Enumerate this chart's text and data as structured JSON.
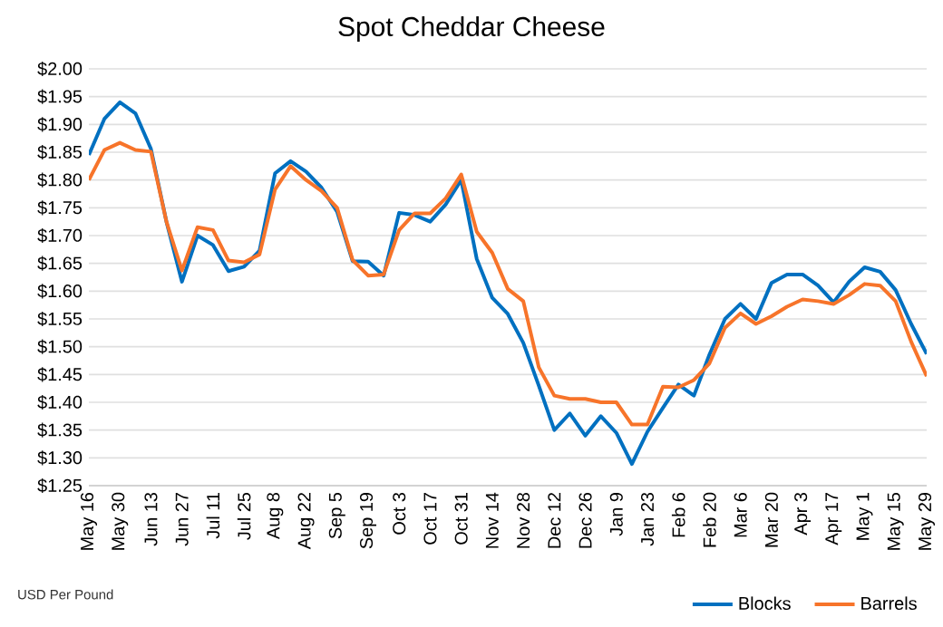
{
  "chart_data": {
    "type": "line",
    "title": "Spot Cheddar Cheese",
    "categories": [
      "May 16",
      null,
      "May 30",
      null,
      "Jun 13",
      null,
      "Jun 27",
      null,
      "Jul 11",
      null,
      "Jul 25",
      null,
      "Aug 8",
      null,
      "Aug 22",
      null,
      "Sep 5",
      null,
      "Sep 19",
      null,
      "Oct 3",
      null,
      "Oct 17",
      null,
      "Oct 31",
      null,
      "Nov 14",
      null,
      "Nov 28",
      null,
      "Dec 12",
      null,
      "Dec 26",
      null,
      "Jan 9",
      null,
      "Jan 23",
      null,
      "Feb 6",
      null,
      "Feb 20",
      null,
      "Mar 6",
      null,
      "Mar 20",
      null,
      "Apr 3",
      null,
      "Apr 17",
      null,
      "May 1",
      null,
      "May 15",
      null,
      "May 29"
    ],
    "series": [
      {
        "name": "Blocks",
        "color": "#0070c0",
        "values": [
          1.845,
          1.91,
          1.94,
          1.92,
          1.856,
          1.725,
          1.617,
          1.7,
          1.683,
          1.636,
          1.644,
          1.673,
          1.812,
          1.834,
          1.815,
          1.786,
          1.743,
          1.654,
          1.653,
          1.628,
          1.741,
          1.737,
          1.725,
          1.756,
          1.8,
          1.658,
          1.588,
          1.559,
          1.507,
          1.43,
          1.35,
          1.38,
          1.34,
          1.375,
          1.345,
          1.289,
          1.347,
          1.39,
          1.432,
          1.412,
          1.486,
          1.55,
          1.577,
          1.55,
          1.615,
          1.63,
          1.63,
          1.61,
          1.58,
          1.617,
          1.643,
          1.635,
          1.602,
          1.541,
          1.487
        ]
      },
      {
        "name": "Barrels",
        "color": "#f7742a",
        "values": [
          1.8,
          1.854,
          1.867,
          1.854,
          1.851,
          1.725,
          1.637,
          1.715,
          1.71,
          1.655,
          1.652,
          1.666,
          1.783,
          1.825,
          1.8,
          1.78,
          1.75,
          1.656,
          1.628,
          1.63,
          1.71,
          1.74,
          1.74,
          1.767,
          1.81,
          1.707,
          1.669,
          1.604,
          1.582,
          1.463,
          1.412,
          1.406,
          1.406,
          1.4,
          1.4,
          1.36,
          1.36,
          1.428,
          1.427,
          1.44,
          1.47,
          1.534,
          1.56,
          1.541,
          1.555,
          1.572,
          1.585,
          1.582,
          1.577,
          1.593,
          1.613,
          1.61,
          1.582,
          1.509,
          1.447
        ]
      }
    ],
    "ylim": [
      1.25,
      2.0
    ],
    "yticks": [
      {
        "value": 1.25,
        "label": "$1.25"
      },
      {
        "value": 1.3,
        "label": "$1.30"
      },
      {
        "value": 1.35,
        "label": "$1.35"
      },
      {
        "value": 1.4,
        "label": "$1.40"
      },
      {
        "value": 1.45,
        "label": "$1.45"
      },
      {
        "value": 1.5,
        "label": "$1.50"
      },
      {
        "value": 1.55,
        "label": "$1.55"
      },
      {
        "value": 1.6,
        "label": "$1.60"
      },
      {
        "value": 1.65,
        "label": "$1.65"
      },
      {
        "value": 1.7,
        "label": "$1.70"
      },
      {
        "value": 1.75,
        "label": "$1.75"
      },
      {
        "value": 1.8,
        "label": "$1.80"
      },
      {
        "value": 1.85,
        "label": "$1.85"
      },
      {
        "value": 1.9,
        "label": "$1.90"
      },
      {
        "value": 1.95,
        "label": "$1.95"
      },
      {
        "value": 2.0,
        "label": "$2.00"
      }
    ],
    "grid": "y",
    "legend": "bottom right",
    "annotations": [
      "USD Per Pound"
    ]
  }
}
